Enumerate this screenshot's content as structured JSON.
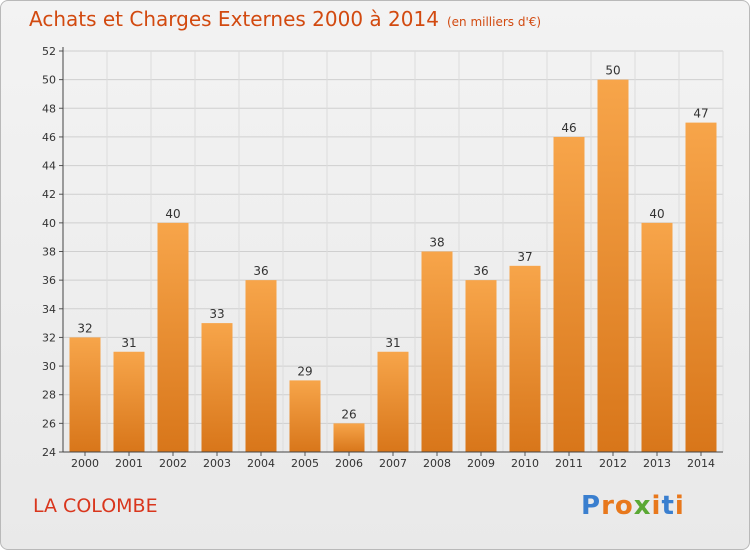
{
  "header": {
    "title": "Achats et Charges Externes 2000 à 2014",
    "subtitle": "(en milliers d'€)"
  },
  "footer": {
    "city": "LA COLOMBE",
    "logo": "Proxiti"
  },
  "colors": {
    "title": "#d24a10",
    "city": "#d9361d",
    "bar_top": "#f7a54a",
    "bar_bottom": "#d8761a",
    "logo": [
      "#3a7fcf",
      "#e8781c",
      "#e8781c",
      "#5aa834",
      "#e8781c",
      "#3a7fcf",
      "#e8781c"
    ]
  },
  "chart_data": {
    "type": "bar",
    "categories": [
      "2000",
      "2001",
      "2002",
      "2003",
      "2004",
      "2005",
      "2006",
      "2007",
      "2008",
      "2009",
      "2010",
      "2011",
      "2012",
      "2013",
      "2014"
    ],
    "values": [
      32,
      31,
      40,
      33,
      36,
      29,
      26,
      31,
      38,
      36,
      37,
      46,
      50,
      40,
      47
    ],
    "ylim": [
      24,
      52
    ],
    "yticks": [
      24,
      26,
      28,
      30,
      32,
      34,
      36,
      38,
      40,
      42,
      44,
      46,
      48,
      50,
      52
    ],
    "grid": true,
    "data_labels": true
  }
}
